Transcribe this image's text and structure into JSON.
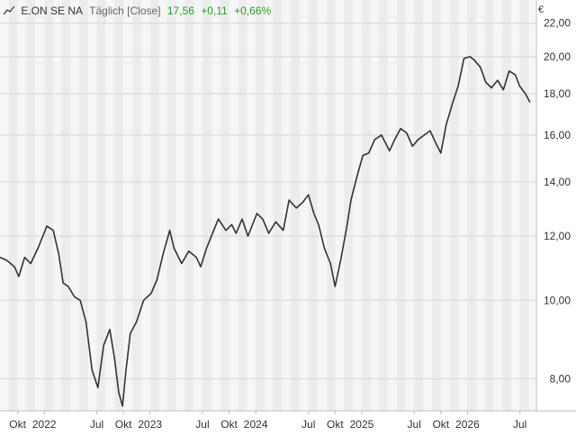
{
  "header": {
    "chart_icon": "line-chart-icon",
    "instrument": "E.ON SE NA",
    "interval": "Täglich [Close]",
    "last": "17,56",
    "change_abs": "+0,11",
    "change_pct": "+0,66%",
    "positive_color": "#2a9d2a"
  },
  "currency": "€",
  "chart_data": {
    "type": "line",
    "title": "E.ON SE NA",
    "xlabel": "",
    "ylabel": "€",
    "y_scale": "log",
    "ylim": [
      7.3,
      23.5
    ],
    "xlim": [
      "2021-08-01",
      "2026-08-27"
    ],
    "grid": true,
    "y_ticks": [
      8,
      10,
      12,
      14,
      16,
      18,
      20,
      22
    ],
    "y_tick_labels": [
      "8,00",
      "10,00",
      "12,00",
      "14,00",
      "16,00",
      "18,00",
      "20,00",
      "22,00"
    ],
    "x_ticks": [
      {
        "date": "2021-10-01",
        "label": "Okt"
      },
      {
        "date": "2022-01-01",
        "label": "2022"
      },
      {
        "date": "2022-07-01",
        "label": "Jul"
      },
      {
        "date": "2022-10-01",
        "label": "Okt"
      },
      {
        "date": "2023-01-01",
        "label": "2023"
      },
      {
        "date": "2023-07-01",
        "label": "Jul"
      },
      {
        "date": "2023-10-01",
        "label": "Okt"
      },
      {
        "date": "2024-01-01",
        "label": "2024"
      },
      {
        "date": "2024-07-01",
        "label": "Jul"
      },
      {
        "date": "2024-10-01",
        "label": "Okt"
      },
      {
        "date": "2025-01-01",
        "label": "2025"
      },
      {
        "date": "2025-07-01",
        "label": "Jul"
      },
      {
        "date": "2025-10-01",
        "label": "Okt"
      },
      {
        "date": "2026-01-01",
        "label": "2026"
      },
      {
        "date": "2026-07-01",
        "label": "Jul"
      }
    ],
    "series": [
      {
        "color": "#333333",
        "x": [
          "2021-08-01",
          "2021-08-25",
          "2021-09-20",
          "2021-10-05",
          "2021-10-25",
          "2021-11-15",
          "2021-12-10",
          "2022-01-10",
          "2022-02-01",
          "2022-02-20",
          "2022-03-07",
          "2022-03-25",
          "2022-04-15",
          "2022-05-05",
          "2022-05-25",
          "2022-06-15",
          "2022-07-05",
          "2022-07-25",
          "2022-08-15",
          "2022-08-31",
          "2022-09-15",
          "2022-09-28",
          "2022-10-10",
          "2022-10-25",
          "2022-11-15",
          "2022-12-10",
          "2023-01-05",
          "2023-01-25",
          "2023-02-15",
          "2023-03-10",
          "2023-03-25",
          "2023-04-20",
          "2023-05-15",
          "2023-06-10",
          "2023-06-25",
          "2023-07-15",
          "2023-08-05",
          "2023-08-25",
          "2023-09-20",
          "2023-10-10",
          "2023-10-25",
          "2023-11-15",
          "2023-12-05",
          "2024-01-05",
          "2024-01-25",
          "2024-02-15",
          "2024-03-10",
          "2024-04-05",
          "2024-04-25",
          "2024-05-20",
          "2024-06-10",
          "2024-07-01",
          "2024-07-20",
          "2024-08-05",
          "2024-08-25",
          "2024-09-15",
          "2024-10-01",
          "2024-10-20",
          "2024-11-10",
          "2024-11-25",
          "2024-12-15",
          "2025-01-05",
          "2025-01-25",
          "2025-02-15",
          "2025-03-10",
          "2025-04-07",
          "2025-04-25",
          "2025-05-15",
          "2025-06-05",
          "2025-06-25",
          "2025-07-15",
          "2025-08-05",
          "2025-08-25",
          "2025-09-15",
          "2025-10-01",
          "2025-10-20",
          "2025-11-10",
          "2025-11-30",
          "2025-12-20",
          "2026-01-10",
          "2026-01-25",
          "2026-02-15",
          "2026-03-05",
          "2026-03-25",
          "2026-04-15",
          "2026-05-05",
          "2026-05-25",
          "2026-06-15",
          "2026-06-30",
          "2026-07-20",
          "2026-08-05"
        ],
        "y": [
          11.3,
          11.2,
          11.0,
          10.7,
          11.3,
          11.1,
          11.6,
          12.35,
          12.2,
          11.4,
          10.5,
          10.4,
          10.1,
          10.0,
          9.4,
          8.2,
          7.8,
          8.8,
          9.2,
          8.5,
          7.7,
          7.4,
          8.2,
          9.1,
          9.4,
          10.0,
          10.2,
          10.6,
          11.4,
          12.2,
          11.6,
          11.1,
          11.5,
          11.3,
          11.0,
          11.6,
          12.1,
          12.6,
          12.2,
          12.4,
          12.1,
          12.6,
          12.0,
          12.8,
          12.6,
          12.1,
          12.5,
          12.2,
          13.3,
          13.0,
          13.2,
          13.5,
          12.8,
          12.4,
          11.6,
          11.1,
          10.4,
          11.2,
          12.3,
          13.3,
          14.2,
          15.1,
          15.2,
          15.8,
          16.0,
          15.3,
          15.8,
          16.3,
          16.1,
          15.5,
          15.8,
          16.0,
          16.2,
          15.6,
          15.2,
          16.5,
          17.5,
          18.4,
          19.9,
          20.0,
          19.8,
          19.4,
          18.6,
          18.3,
          18.7,
          18.2,
          19.2,
          19.0,
          18.4,
          18.0,
          17.56
        ]
      }
    ]
  }
}
